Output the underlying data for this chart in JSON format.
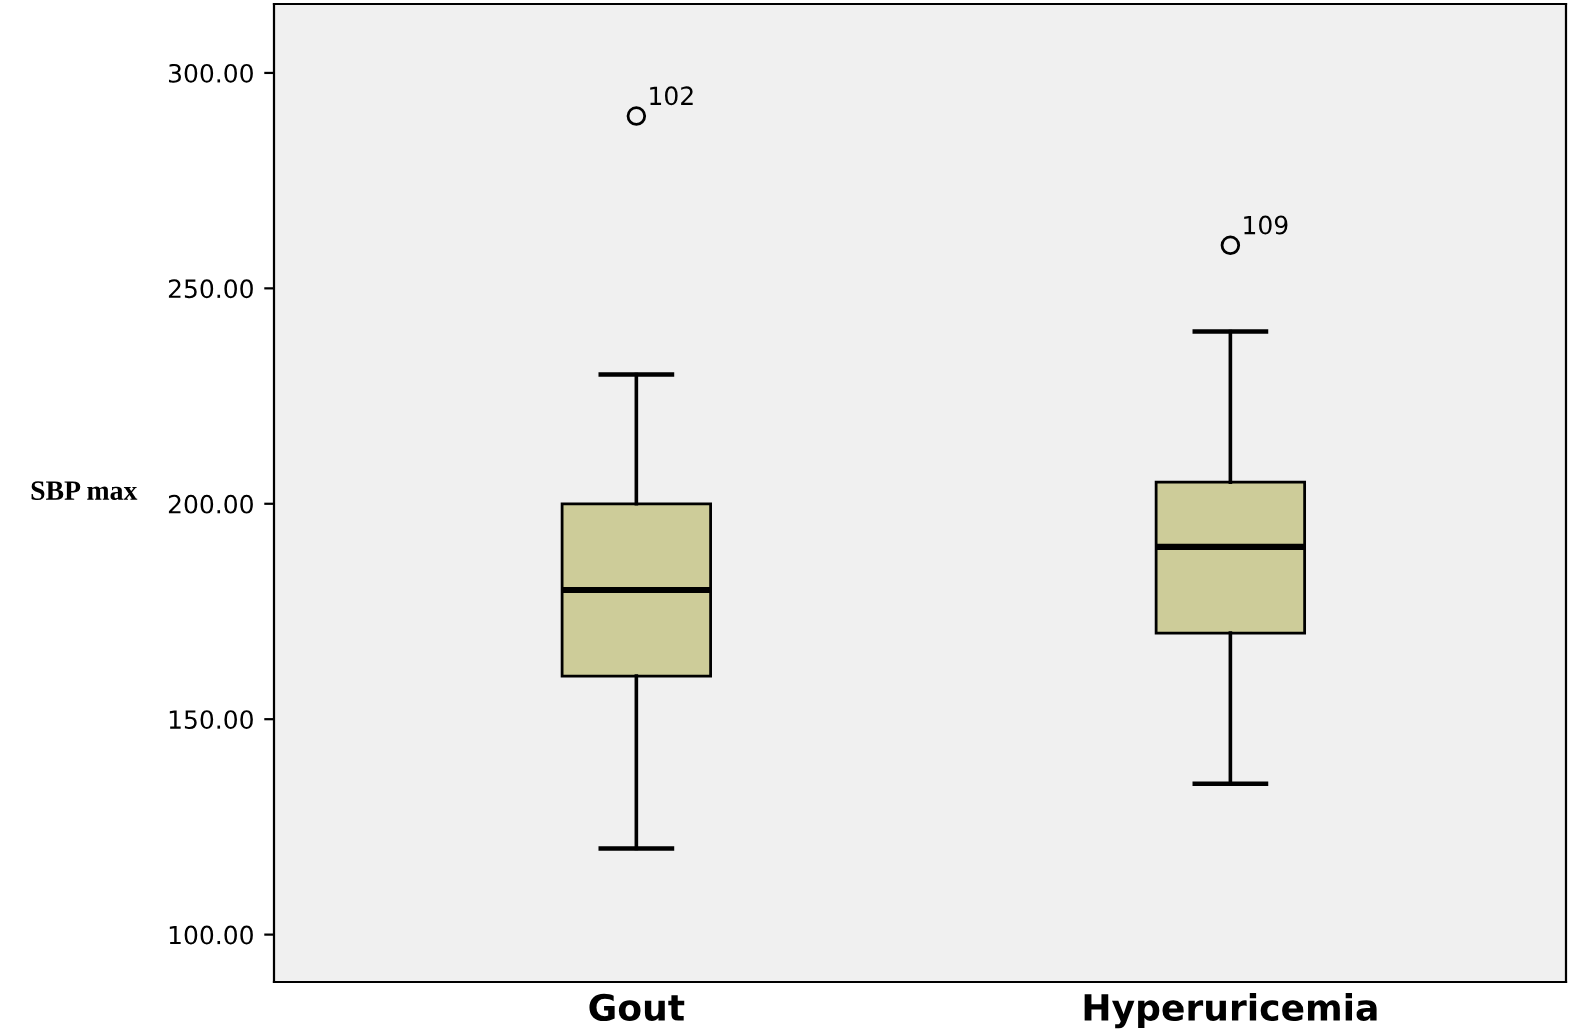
{
  "chart_data": {
    "type": "box",
    "ylabel": "SBP max",
    "categories": [
      "Gout",
      "Hyperuricemia"
    ],
    "boxes": [
      {
        "low": 120,
        "q1": 160,
        "median": 180,
        "q3": 200,
        "high": 230,
        "outliers": [
          290
        ]
      },
      {
        "low": 135,
        "q1": 170,
        "median": 190,
        "q3": 205,
        "high": 240,
        "outliers": [
          260
        ]
      }
    ],
    "color": "#cdcc99",
    "ylim": [
      89,
      316
    ],
    "yticks": [
      {
        "value": 100,
        "label": "100.00"
      },
      {
        "value": 150,
        "label": "150.00"
      },
      {
        "value": 200,
        "label": "200.00"
      },
      {
        "value": 250,
        "label": "250.00"
      },
      {
        "value": 300,
        "label": "300.00"
      }
    ],
    "annotations": [
      "102",
      "109"
    ],
    "grid": false,
    "legend": false
  }
}
